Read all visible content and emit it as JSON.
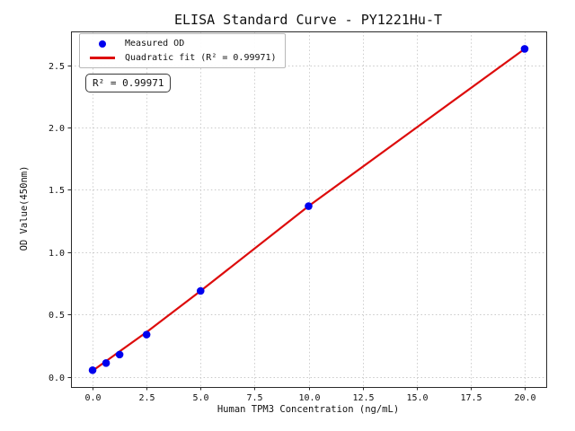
{
  "figure": {
    "background": "#ffffff"
  },
  "chart_data": {
    "type": "scatter",
    "title": "ELISA Standard Curve - PY1221Hu-T",
    "xlabel": "Human TPM3 Concentration (ng/mL)",
    "ylabel": "OD Value(450nm)",
    "xlim": [
      -1,
      21
    ],
    "ylim": [
      -0.08,
      2.77
    ],
    "xticks": [
      0.0,
      2.5,
      5.0,
      7.5,
      10.0,
      12.5,
      15.0,
      17.5,
      20.0
    ],
    "yticks": [
      0.0,
      0.5,
      1.0,
      1.5,
      2.0,
      2.5
    ],
    "grid": true,
    "grid_style": "dotted",
    "legend_position": "upper left",
    "series": [
      {
        "name": "Measured OD",
        "type": "scatter",
        "color": "#0000ee",
        "x": [
          0,
          0.625,
          1.25,
          2.5,
          5,
          10,
          20
        ],
        "y": [
          0.055,
          0.112,
          0.18,
          0.34,
          0.69,
          1.37,
          2.63
        ]
      },
      {
        "name": "Quadratic fit (R² = 0.99971)",
        "type": "line",
        "color": "#dd0c0c",
        "x": [
          0,
          2.5,
          5,
          10,
          15,
          20
        ],
        "y": [
          0.05,
          0.36,
          0.69,
          1.37,
          2.0,
          2.63
        ]
      }
    ],
    "r_squared": 0.99971,
    "annotations": [
      {
        "text": "R² = 0.99971"
      }
    ]
  },
  "style": {
    "grid_color": "#c9c9c9",
    "spine_color": "#2a2a2a",
    "tick_color": "#2a2a2a",
    "text_color": "#111111"
  }
}
